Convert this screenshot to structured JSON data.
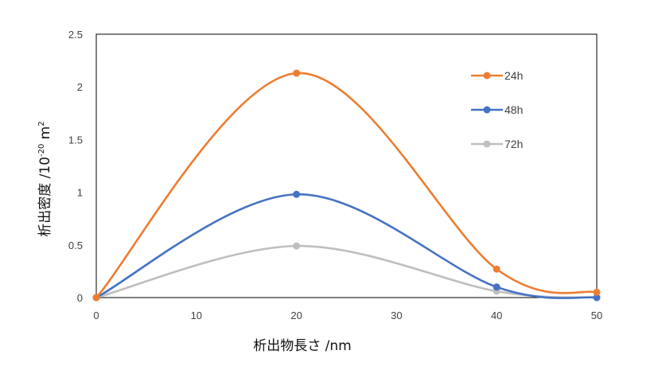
{
  "chart_data": {
    "type": "line",
    "xlabel": "析出物長さ /nm",
    "ylabel": "析出密度 /10",
    "ylabel_exponent": "-20",
    "ylabel_suffix": " m",
    "ylabel_suffix_exponent": "2",
    "xlim": [
      0,
      50
    ],
    "ylim": [
      0,
      2.5
    ],
    "xticks": [
      0,
      10,
      20,
      30,
      40,
      50
    ],
    "yticks": [
      "0",
      "0.5",
      "1",
      "1.5",
      "2",
      "2.5"
    ],
    "grid": false,
    "smooth": true,
    "legend_position": "right",
    "series": [
      {
        "name": "24h",
        "color": "#ED7D31",
        "points": [
          [
            0,
            0
          ],
          [
            20,
            2.13
          ],
          [
            40,
            0.27
          ],
          [
            50,
            0.05
          ]
        ]
      },
      {
        "name": "48h",
        "color": "#4472C4",
        "points": [
          [
            0,
            0
          ],
          [
            20,
            0.98
          ],
          [
            40,
            0.1
          ],
          [
            50,
            0.0
          ]
        ]
      },
      {
        "name": "72h",
        "color": "#BFBFBF",
        "points": [
          [
            0,
            0
          ],
          [
            20,
            0.49
          ],
          [
            40,
            0.06
          ],
          [
            50,
            0.0
          ]
        ]
      }
    ]
  }
}
